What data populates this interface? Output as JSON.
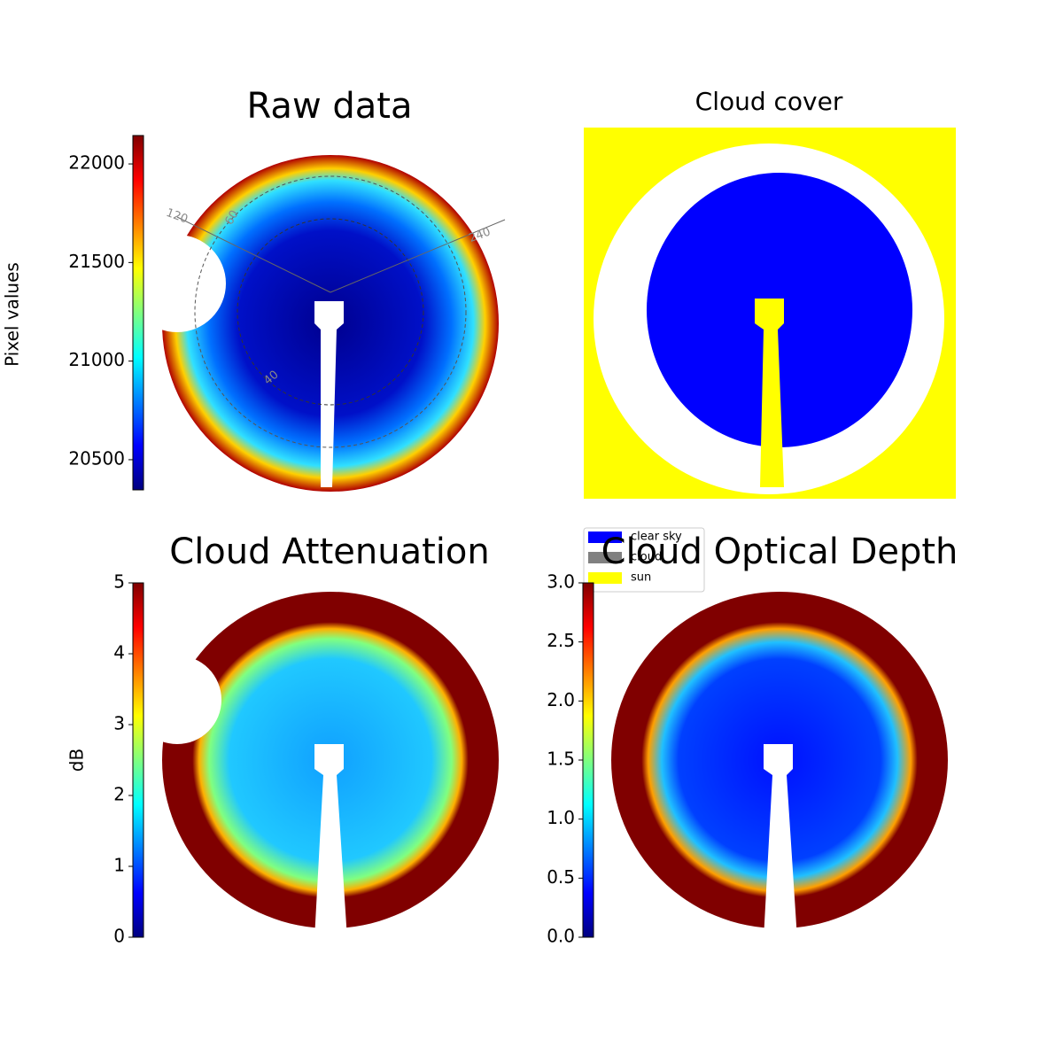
{
  "chart_data": [
    {
      "type": "image",
      "title": "Raw data",
      "colorbar": {
        "label": "Pixel values",
        "colormap": "jet",
        "ylim": [
          20347,
          22144
        ],
        "yticks": [
          20500,
          21000,
          21500,
          22000
        ]
      },
      "polar_labels": [
        "120",
        "240",
        "60",
        "40"
      ]
    },
    {
      "type": "image",
      "title": "Cloud cover",
      "legend": [
        {
          "name": "clear sky",
          "color": "#0000ff"
        },
        {
          "name": "cloud",
          "color": "#808080"
        },
        {
          "name": "sun",
          "color": "#ffff00"
        }
      ]
    },
    {
      "type": "image",
      "title": "Cloud Attenuation",
      "colorbar": {
        "label": "dB",
        "colormap": "jet",
        "ylim": [
          0,
          5
        ],
        "yticks": [
          0,
          1,
          2,
          3,
          4,
          5
        ]
      }
    },
    {
      "type": "image",
      "title": "Cloud Optical Depth",
      "colorbar": {
        "colormap": "jet",
        "ylim": [
          0,
          3
        ],
        "yticks": [
          {
            "value": 0,
            "label": "0.0"
          },
          {
            "value": 0.5,
            "label": "0.5"
          },
          {
            "value": 1,
            "label": "1.0"
          },
          {
            "value": 1.5,
            "label": "1.5"
          },
          {
            "value": 2,
            "label": "2.0"
          },
          {
            "value": 2.5,
            "label": "2.5"
          },
          {
            "value": 3,
            "label": "3.0"
          }
        ]
      }
    }
  ]
}
